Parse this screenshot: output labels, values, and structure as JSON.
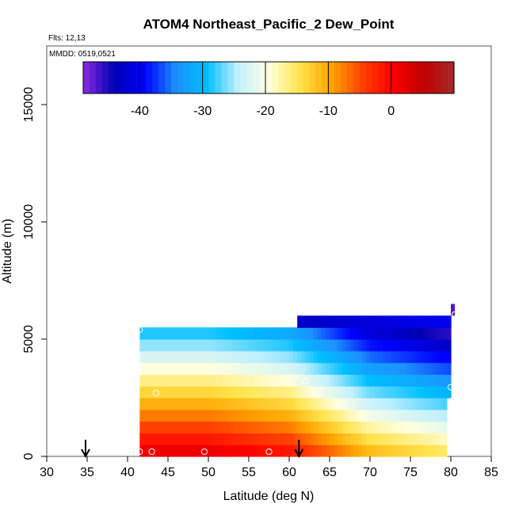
{
  "chart_data": {
    "type": "heatmap",
    "title": "ATOM4 Northeast_Pacific_2 Dew_Point",
    "annotations": {
      "flights": "Flts: 12,13",
      "dates": "MMDD: 0519,0521"
    },
    "xlabel": "Latitude (deg N)",
    "ylabel": "Altitude (m)",
    "xlim": [
      30,
      85
    ],
    "ylim": [
      0,
      17500
    ],
    "x_ticks": [
      30,
      35,
      40,
      45,
      50,
      55,
      60,
      65,
      70,
      75,
      80,
      85
    ],
    "y_ticks": [
      0,
      5000,
      10000,
      15000
    ],
    "colorbar": {
      "range": [
        -49,
        10
      ],
      "ticks": [
        -40,
        -30,
        -20,
        -10,
        0
      ],
      "colors": [
        "#8a2be2",
        "#0000b4",
        "#0000ff",
        "#1e90ff",
        "#00bfff",
        "#bfefff",
        "#ffffe0",
        "#ffe44d",
        "#ffa500",
        "#ff4500",
        "#ff0000",
        "#c00000",
        "#a52a2a"
      ]
    },
    "field": {
      "lat_range": [
        41.5,
        79.5
      ],
      "lat_step": 0.5,
      "alt_step": 500,
      "alt_range": [
        0,
        5500
      ],
      "surface_dewpoint": [
        {
          "lat": 41.5,
          "value": 3
        },
        {
          "lat": 50,
          "value": 3
        },
        {
          "lat": 60,
          "value": 0
        },
        {
          "lat": 70,
          "value": -10
        },
        {
          "lat": 79.5,
          "value": -14
        }
      ],
      "lapse_per_km": -6,
      "upper_band": {
        "lat_range": [
          61,
          80
        ],
        "alt_range": [
          5500,
          6000
        ],
        "value": -43
      },
      "top_cell": {
        "lat_range": [
          80,
          80.5
        ],
        "alt_range": [
          6000,
          6500
        ],
        "value": -47
      },
      "right_edge": {
        "lat_range": [
          79.5,
          80
        ],
        "alt_range": [
          2500,
          6000
        ]
      }
    },
    "sample_points": [
      {
        "lat": 41.5,
        "alt": 200
      },
      {
        "lat": 43,
        "alt": 200
      },
      {
        "lat": 49.5,
        "alt": 200
      },
      {
        "lat": 57.5,
        "alt": 200
      },
      {
        "lat": 43.5,
        "alt": 2700
      },
      {
        "lat": 58,
        "alt": 3100
      },
      {
        "lat": 62,
        "alt": 3200
      },
      {
        "lat": 80,
        "alt": 2950
      },
      {
        "lat": 41.5,
        "alt": 5400
      },
      {
        "lat": 80.5,
        "alt": 6050
      }
    ],
    "markers": [
      {
        "lat": 34.8,
        "type": "arrow-down"
      },
      {
        "lat": 61.2,
        "type": "arrow-down"
      }
    ],
    "grid": false,
    "legend": "top (colorbar inside plot)"
  }
}
